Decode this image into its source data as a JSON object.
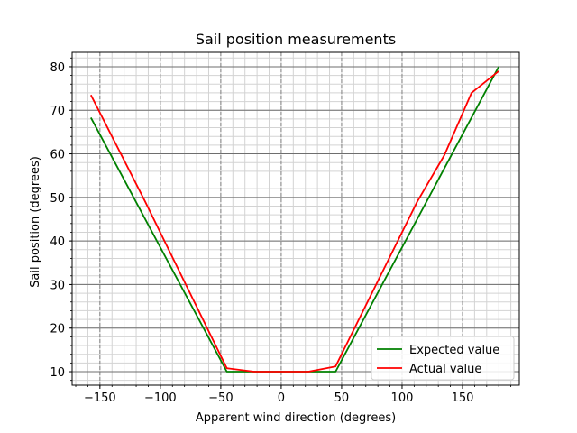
{
  "chart_data": {
    "type": "line",
    "title": "Sail position measurements",
    "xlabel": "Apparent wind direction (degrees)",
    "ylabel": "Sail position (degrees)",
    "xlim": [
      -173,
      197
    ],
    "ylim": [
      6.9,
      83.3
    ],
    "x_ticks": [
      -150,
      -100,
      -50,
      0,
      50,
      100,
      150
    ],
    "y_ticks": [
      10,
      20,
      30,
      40,
      50,
      60,
      70,
      80
    ],
    "x_minor_step": 10,
    "y_minor_step": 2,
    "grid": true,
    "legend_position": "lower-right",
    "series": [
      {
        "name": "Expected value",
        "color": "#008000",
        "x": [
          -157.5,
          -45,
          -22.5,
          0,
          22.5,
          45,
          180
        ],
        "y": [
          68.3,
          10.0,
          10.0,
          10.0,
          10.0,
          10.0,
          80.0
        ]
      },
      {
        "name": "Actual value",
        "color": "#ff0000",
        "x": [
          -157.5,
          -112.5,
          -45,
          -22.5,
          0,
          22.5,
          45,
          112.5,
          135,
          157.5,
          180
        ],
        "y": [
          73.5,
          49.0,
          10.8,
          10.0,
          10.0,
          10.0,
          11.2,
          49.0,
          59.7,
          74.0,
          79.0
        ]
      }
    ]
  }
}
